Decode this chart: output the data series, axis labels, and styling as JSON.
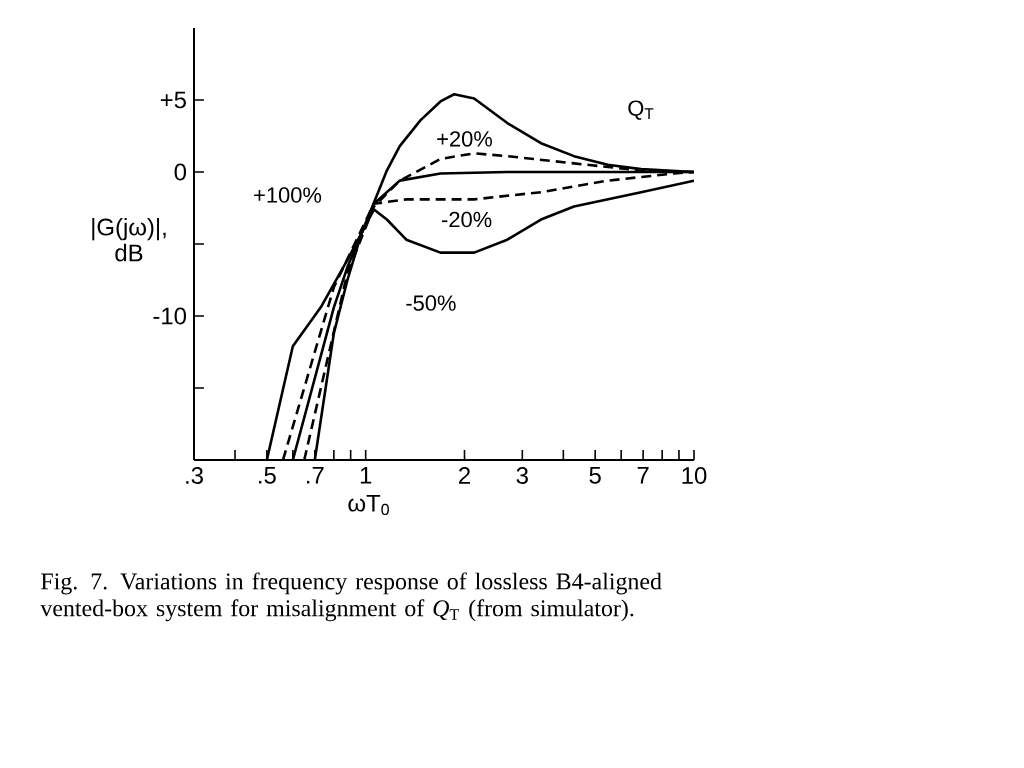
{
  "chart_data": {
    "type": "line",
    "xlabel": "ωT$_{0}$",
    "ylabel": "|G(jω)|, dB",
    "legend_title": "Q$_{T}$",
    "annotations": [
      "Fig. 7. Variations in frequency response of lossless B4-aligned vented-box system for misalignment of *Q*$_{T}$ (from simulator)."
    ],
    "log": "x",
    "xlim": [
      0.3,
      10
    ],
    "ylim": [
      -20,
      10
    ],
    "xticks": [
      {
        "value": 0.3,
        "label": ".3"
      },
      {
        "value": 0.4,
        "label": null
      },
      {
        "value": 0.5,
        "label": ".5"
      },
      {
        "value": 0.6,
        "label": null
      },
      {
        "value": 0.7,
        "label": ".7"
      },
      {
        "value": 0.8,
        "label": null
      },
      {
        "value": 0.9,
        "label": null
      },
      1,
      2,
      3,
      {
        "value": 4,
        "label": null
      },
      5,
      {
        "value": 6,
        "label": null
      },
      7,
      {
        "value": 8,
        "label": null
      },
      {
        "value": 9,
        "label": null
      },
      10
    ],
    "yticks": [
      {
        "value": 5,
        "label": "+5"
      },
      0,
      {
        "value": -5,
        "label": null
      },
      -10,
      {
        "value": -15,
        "label": null
      }
    ],
    "series": [
      {
        "name": "+100%",
        "color": "#000000",
        "line_style": "solid",
        "x": [
          0.7,
          0.8,
          0.88,
          0.97,
          1.16,
          1.27,
          1.47,
          1.69,
          1.86,
          2.14,
          2.7,
          3.42,
          4.31,
          5.46,
          6.9,
          10
        ],
        "values": [
          -20,
          -11.2,
          -7.5,
          -4.3,
          0.1,
          1.8,
          3.6,
          4.9,
          5.4,
          5.1,
          3.4,
          2.0,
          1.1,
          0.5,
          0.2,
          0
        ]
      },
      {
        "name": "+20%",
        "color": "#000000",
        "line_style": "dashed",
        "x": [
          0.65,
          0.88,
          1.06,
          1.27,
          1.69,
          2.14,
          2.7,
          4.31,
          6.9,
          10
        ],
        "values": [
          -20,
          -7,
          -2.4,
          -0.6,
          0.9,
          1.3,
          1.1,
          0.6,
          0.1,
          0
        ]
      },
      {
        "color": "#000000",
        "line_style": "solid",
        "x": [
          0.6,
          0.8,
          0.88,
          1.06,
          1.27,
          1.69,
          2.7,
          10
        ],
        "values": [
          -20,
          -9.4,
          -6.6,
          -2.2,
          -0.6,
          -0.1,
          0,
          0
        ]
      },
      {
        "name": "-20%",
        "color": "#000000",
        "line_style": "dashed",
        "x": [
          0.56,
          0.8,
          1.06,
          1.33,
          2.14,
          3.42,
          5.46,
          8.7,
          10
        ],
        "values": [
          -20,
          -8,
          -2.2,
          -1.9,
          -1.9,
          -1.4,
          -0.6,
          -0.1,
          0
        ]
      },
      {
        "name": "-50%",
        "color": "#000000",
        "line_style": "solid",
        "x": [
          0.5,
          0.6,
          0.73,
          0.88,
          1.06,
          1.16,
          1.33,
          1.69,
          2.14,
          2.7,
          3.42,
          4.31,
          6.9,
          10
        ],
        "values": [
          -20,
          -12.1,
          -9.4,
          -6.1,
          -2.6,
          -3.3,
          -4.7,
          -5.6,
          -5.6,
          -4.7,
          -3.3,
          -2.4,
          -1.4,
          -0.6
        ]
      }
    ]
  }
}
